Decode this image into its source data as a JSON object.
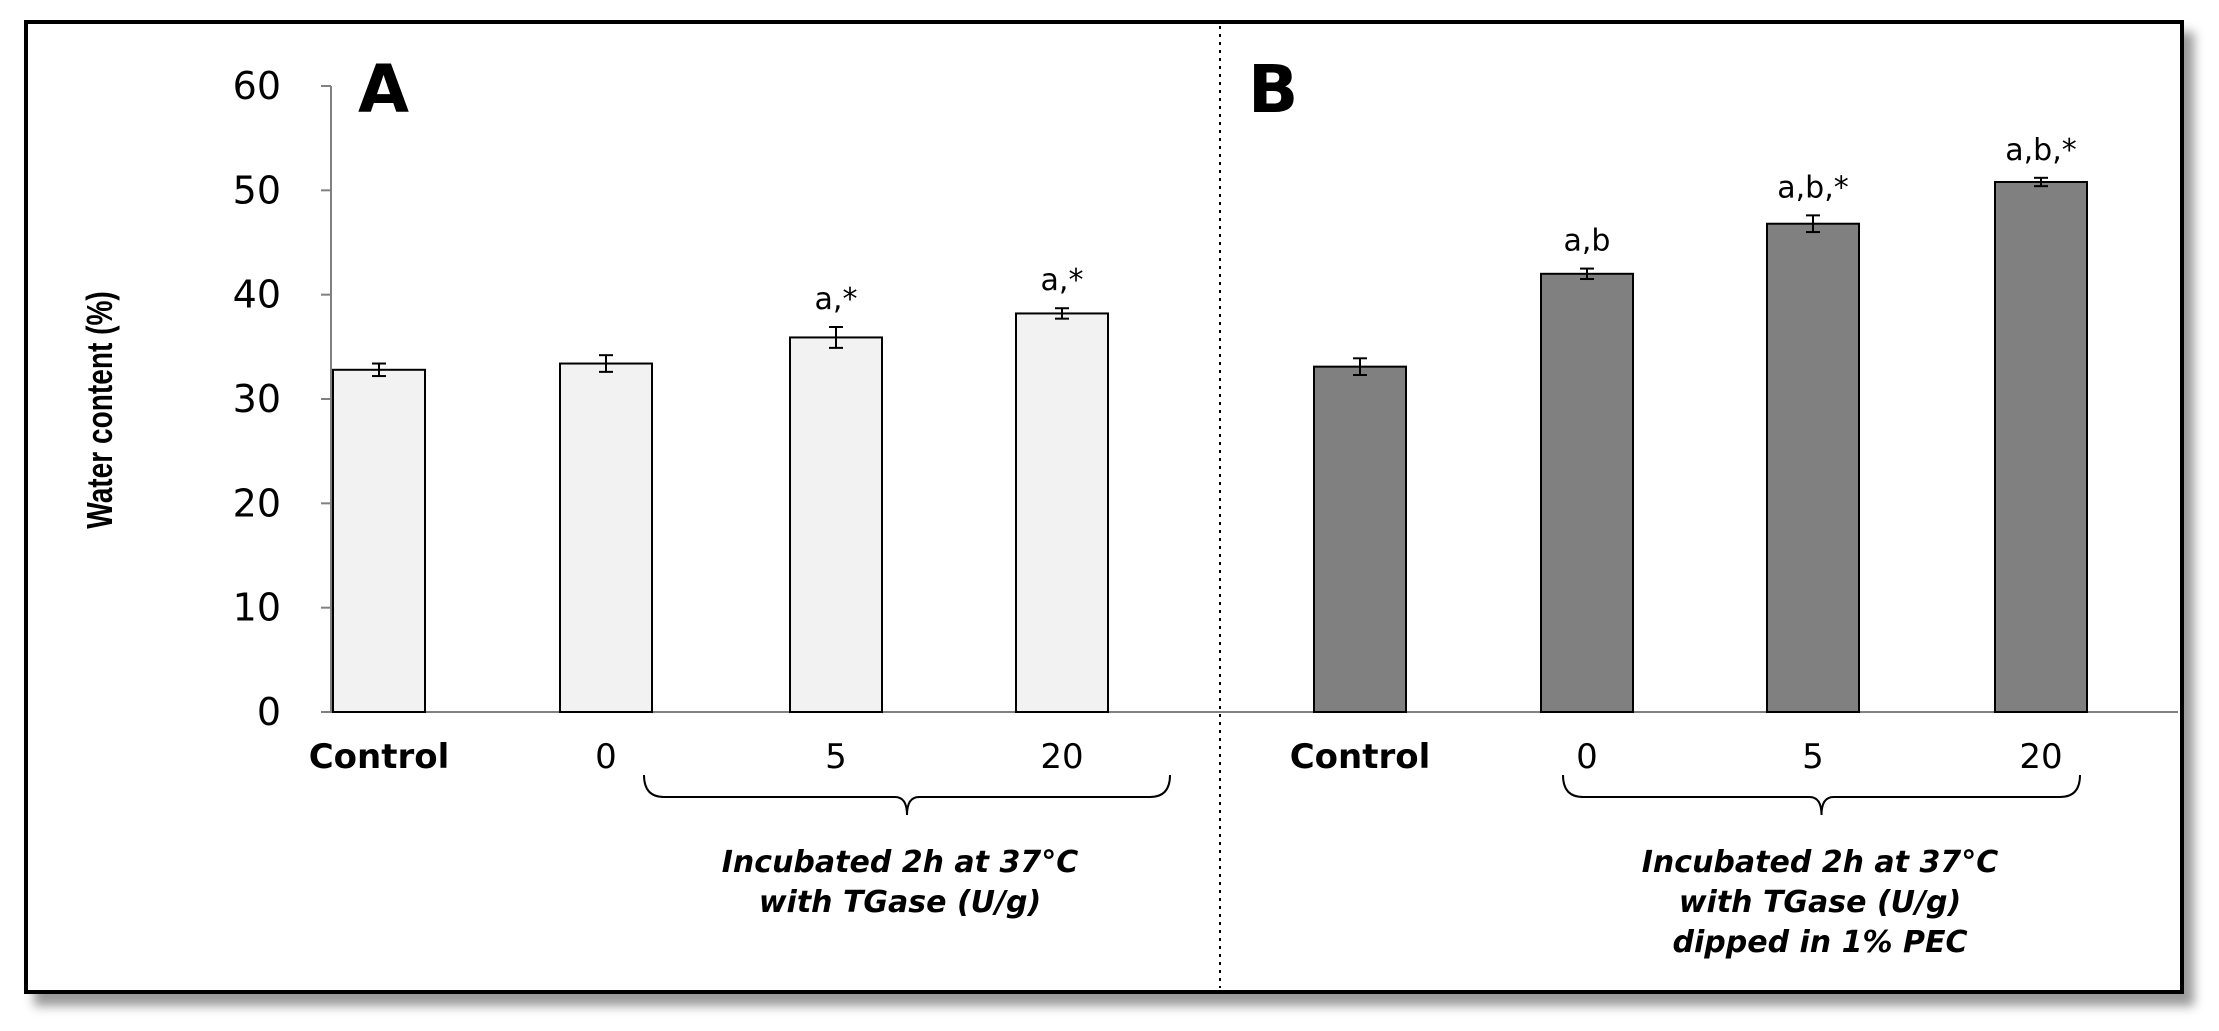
{
  "chart_data": {
    "type": "bar",
    "ylabel": "Water content (%)",
    "ylim": [
      0,
      60
    ],
    "yticks": [
      "0",
      "10",
      "20",
      "30",
      "40",
      "50",
      "60"
    ],
    "panels": [
      {
        "letter": "A",
        "categories": [
          "Control",
          "0",
          "5",
          "20"
        ],
        "values": [
          32.8,
          33.4,
          35.9,
          38.2
        ],
        "errors": [
          0.6,
          0.8,
          1.0,
          0.5
        ],
        "annotations": [
          "",
          "",
          "a,*",
          "a,*"
        ],
        "bar_color": "#f2f2f2",
        "caption": [
          "Incubated 2h at 37°C",
          "with TGase (U/g)"
        ]
      },
      {
        "letter": "B",
        "categories": [
          "Control",
          "0",
          "5",
          "20"
        ],
        "values": [
          33.1,
          42.0,
          46.8,
          50.8
        ],
        "errors": [
          0.8,
          0.5,
          0.8,
          0.4
        ],
        "annotations": [
          "",
          "a,b",
          "a,b,*",
          "a,b,*"
        ],
        "bar_color": "#808080",
        "caption": [
          "Incubated 2h at 37°C",
          "with TGase (U/g)",
          "dipped in 1% PEC"
        ]
      }
    ]
  }
}
